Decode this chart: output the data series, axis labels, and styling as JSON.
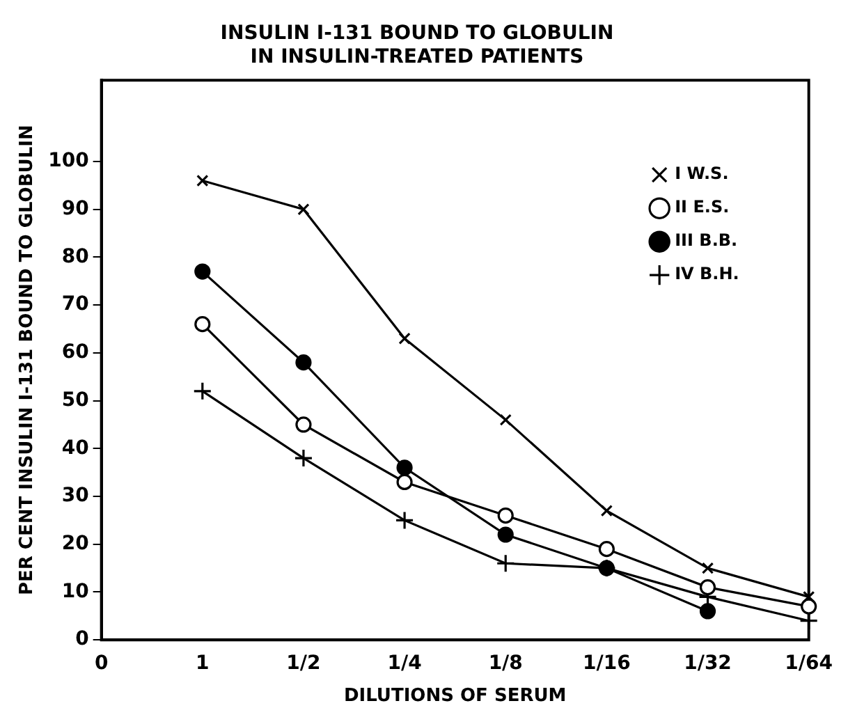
{
  "chart_data": {
    "type": "line",
    "title": "INSULIN I-131 BOUND TO GLOBULIN IN INSULIN-TREATED PATIENTS",
    "xlabel": "DILUTIONS OF SERUM",
    "ylabel": "PER CENT INSULIN I-131 BOUND TO GLOBULIN",
    "categories": [
      "0",
      "1",
      "1/2",
      "1/4",
      "1/8",
      "1/16",
      "1/32",
      "1/64"
    ],
    "series": [
      {
        "name": "I W.S.",
        "color": "#000000",
        "marker": "cross",
        "values": [
          null,
          96,
          90,
          63,
          46,
          27,
          15,
          9
        ]
      },
      {
        "name": "II E.S.",
        "color": "#000000",
        "marker": "circle",
        "values": [
          null,
          66,
          45,
          33,
          26,
          19,
          11,
          7
        ]
      },
      {
        "name": "III B.B.",
        "color": "#000000",
        "marker": "circle-filled",
        "values": [
          null,
          77,
          58,
          36,
          22,
          15,
          6,
          null
        ]
      },
      {
        "name": "IV B.H.",
        "color": "#000000",
        "marker": "plus",
        "values": [
          null,
          52,
          38,
          25,
          16,
          15,
          9,
          4
        ]
      }
    ],
    "ylim": [
      0,
      117
    ],
    "yticks": [
      0,
      10,
      20,
      30,
      40,
      50,
      60,
      70,
      80,
      90,
      100
    ],
    "grid": false,
    "legend": "top right",
    "line_style": "solid"
  }
}
